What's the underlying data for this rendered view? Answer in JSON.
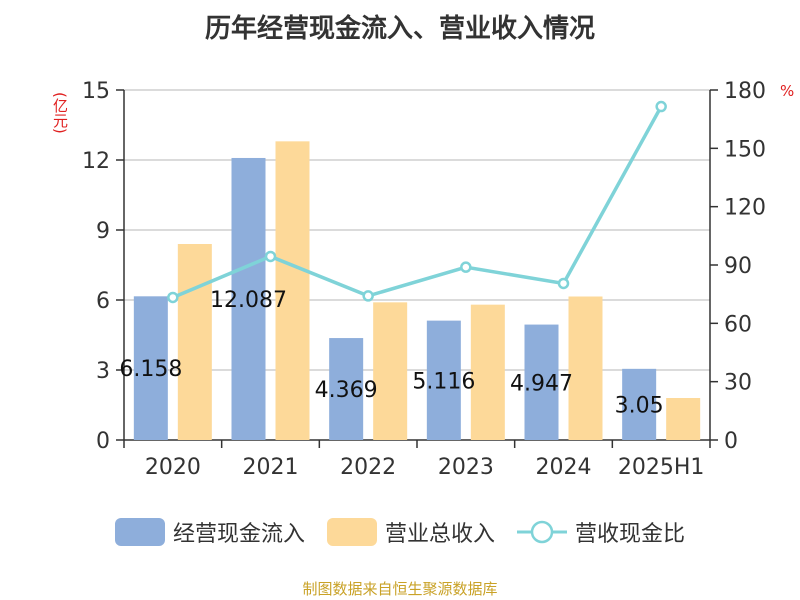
{
  "chart_data": {
    "type": "bar",
    "title": "历年经营现金流入、营业收入情况",
    "categories": [
      "2020",
      "2021",
      "2022",
      "2023",
      "2024",
      "2025H1"
    ],
    "y_unit": "(亿元)",
    "y2_unit": "%",
    "ylim": [
      0,
      15
    ],
    "yticks": [
      0,
      3,
      6,
      9,
      12,
      15
    ],
    "y2lim": [
      0,
      180
    ],
    "y2ticks": [
      0,
      30,
      60,
      90,
      120,
      150,
      180
    ],
    "grid": true,
    "legend_position": "bottom",
    "series": [
      {
        "name": "经营现金流入",
        "kind": "bar",
        "axis": "left",
        "color": "#8eaedb",
        "values": [
          6.158,
          12.087,
          4.369,
          5.116,
          4.947,
          3.05
        ],
        "labels": [
          "6.158",
          "12.087",
          "4.369",
          "5.116",
          "4.947",
          "3.05"
        ]
      },
      {
        "name": "营业总收入",
        "kind": "bar",
        "axis": "left",
        "color": "#fdd999",
        "values": [
          8.4,
          12.8,
          5.9,
          5.8,
          6.15,
          1.8
        ]
      },
      {
        "name": "营收现金比",
        "kind": "line",
        "axis": "right",
        "color": "#7fd3d8",
        "values": [
          73.3,
          94.4,
          74.1,
          88.9,
          80.5,
          171.5
        ]
      }
    ]
  },
  "footer": "制图数据来自恒生聚源数据库"
}
